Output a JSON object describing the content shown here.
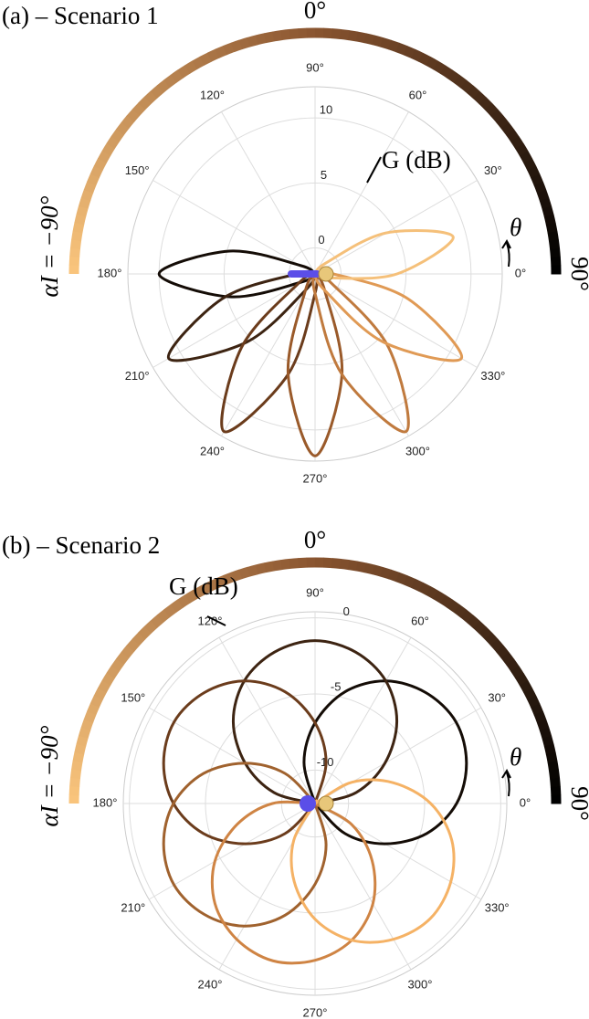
{
  "chart_data": [
    {
      "type": "polar",
      "title": "(a) – Scenario 1",
      "colorbar": {
        "colors": [
          "#f9c47c",
          "#8a5530",
          "#000000"
        ],
        "top_label": "0°",
        "right_label": "90°",
        "left_label": "αI = −90°"
      },
      "theta_label": "θ",
      "gain_label": "G (dB)",
      "rlim": [
        -2,
        12.4
      ],
      "rticks": [
        0,
        5,
        10
      ],
      "angle_ticks": [
        {
          "value": 0,
          "label": "0°"
        },
        {
          "value": 30,
          "label": "30°"
        },
        {
          "value": 60,
          "label": "60°"
        },
        {
          "value": 90,
          "label": "90°"
        },
        {
          "value": 120,
          "label": "120°"
        },
        {
          "value": 150,
          "label": "150°"
        },
        {
          "value": 180,
          "label": "180°"
        },
        {
          "value": 210,
          "label": "210°"
        },
        {
          "value": 240,
          "label": "240°"
        },
        {
          "value": 270,
          "label": "270°"
        },
        {
          "value": 300,
          "label": "300°"
        },
        {
          "value": 330,
          "label": "330°"
        }
      ],
      "theta": [
        0,
        15,
        30,
        45,
        60,
        75,
        90,
        105,
        120,
        135,
        150,
        165,
        180,
        195,
        210,
        225,
        240,
        255,
        270,
        285,
        300,
        315,
        330,
        345
      ],
      "series": [
        {
          "color": "#140c06",
          "values": [
            -2,
            -2,
            -2,
            -2,
            -2,
            -2,
            -2,
            -2,
            -2,
            -2,
            -0.7,
            4.8,
            10,
            4.8,
            -0.7,
            -2,
            -2,
            -2,
            -2,
            -2,
            -2,
            -2,
            -2,
            -2
          ]
        },
        {
          "color": "#3d2412",
          "values": [
            -2,
            -2,
            -2,
            -2,
            -2,
            -2,
            -2,
            -2,
            -2,
            -2,
            -2,
            -2,
            -0.6,
            5.4,
            11,
            5.4,
            -0.6,
            -2,
            -2,
            -2,
            -2,
            -2,
            -2,
            -2
          ]
        },
        {
          "color": "#6b3c1c",
          "values": [
            -2,
            -2,
            -2,
            -2,
            -2,
            -2,
            -2,
            -2,
            -2,
            -2,
            -2,
            -2,
            -2,
            -2,
            -0.5,
            6,
            12,
            6,
            -0.5,
            -2,
            -2,
            -2,
            -2,
            -2
          ]
        },
        {
          "color": "#9a5a2a",
          "values": [
            -2,
            -2,
            -2,
            -2,
            -2,
            -2,
            -2,
            -2,
            -2,
            -2,
            -2,
            -2,
            -2,
            -2,
            -2,
            -2,
            -0.5,
            6,
            12,
            6,
            -0.5,
            -2,
            -2,
            -2
          ]
        },
        {
          "color": "#c07a3e",
          "values": [
            -2,
            -2,
            -2,
            -2,
            -2,
            -2,
            -2,
            -2,
            -2,
            -2,
            -2,
            -2,
            -2,
            -2,
            -2,
            -2,
            -2,
            -2,
            -0.5,
            6,
            12,
            6,
            -0.5,
            -2
          ]
        },
        {
          "color": "#e09a55",
          "values": [
            -0.6,
            -2,
            -2,
            -2,
            -2,
            -2,
            -2,
            -2,
            -2,
            -2,
            -2,
            -2,
            -2,
            -2,
            -2,
            -2,
            -2,
            -2,
            -2,
            -2,
            -0.6,
            5.4,
            11,
            5.4
          ]
        },
        {
          "color": "#f5c07a",
          "values": [
            4.3,
            9,
            4.3,
            -0.8,
            -2,
            -2,
            -2,
            -2,
            -2,
            -2,
            -2,
            -2,
            -2,
            -2,
            -2,
            -2,
            -2,
            -2,
            -2,
            -2,
            -2,
            -2,
            -2,
            -0.8
          ]
        }
      ]
    },
    {
      "type": "polar",
      "title": "(b) – Scenario 2",
      "colorbar": {
        "colors": [
          "#f9c47c",
          "#8a5530",
          "#000000"
        ],
        "top_label": "0°",
        "right_label": "90°",
        "left_label": "αI = −90°"
      },
      "theta_label": "θ",
      "gain_label": "G (dB)",
      "rlim": [
        -12.2,
        0.4
      ],
      "rticks": [
        -10,
        -5,
        0
      ],
      "angle_ticks": [
        {
          "value": 0,
          "label": "0°"
        },
        {
          "value": 30,
          "label": "30°"
        },
        {
          "value": 60,
          "label": "60°"
        },
        {
          "value": 90,
          "label": "90°"
        },
        {
          "value": 120,
          "label": "120°"
        },
        {
          "value": 150,
          "label": "150°"
        },
        {
          "value": 180,
          "label": "180°"
        },
        {
          "value": 210,
          "label": "210°"
        },
        {
          "value": 240,
          "label": "240°"
        },
        {
          "value": 270,
          "label": "270°"
        },
        {
          "value": 300,
          "label": "300°"
        },
        {
          "value": 330,
          "label": "330°"
        }
      ],
      "theta": [
        0,
        15,
        30,
        45,
        60,
        75,
        90,
        105,
        120,
        135,
        150,
        165,
        180,
        195,
        210,
        225,
        240,
        255,
        270,
        285,
        300,
        315,
        330,
        345
      ],
      "series": [
        {
          "color": "#140c06",
          "values": [
            -2.9,
            -1.9,
            -1.5,
            -1.9,
            -2.9,
            -4.6,
            -6.9,
            -9.4,
            -12.2,
            -12.2,
            -12.2,
            -12.2,
            -12.2,
            -12.2,
            -12.2,
            -12.2,
            -12.2,
            -12.2,
            -12.2,
            -12.2,
            -12.2,
            -9.4,
            -6.9,
            -4.6
          ]
        },
        {
          "color": "#3d2412",
          "values": [
            -12.2,
            -9.4,
            -6.9,
            -4.6,
            -2.9,
            -1.9,
            -1.5,
            -1.9,
            -2.9,
            -4.6,
            -6.9,
            -9.4,
            -12.2,
            -12.2,
            -12.2,
            -12.2,
            -12.2,
            -12.2,
            -12.2,
            -12.2,
            -12.2,
            -12.2,
            -12.2,
            -12.2
          ]
        },
        {
          "color": "#6b3c1c",
          "values": [
            -12.2,
            -12.2,
            -12.2,
            -12.2,
            -12.2,
            -9.4,
            -6.9,
            -4.6,
            -2.9,
            -1.9,
            -1.5,
            -1.9,
            -2.9,
            -4.6,
            -6.9,
            -9.4,
            -12.2,
            -12.2,
            -12.2,
            -12.2,
            -12.2,
            -12.2,
            -12.2,
            -12.2
          ]
        },
        {
          "color": "#a0622e",
          "values": [
            -12.2,
            -12.2,
            -12.2,
            -12.2,
            -12.2,
            -12.2,
            -12.2,
            -12.2,
            -12.2,
            -9.4,
            -6.9,
            -4.6,
            -2.9,
            -1.9,
            -1.5,
            -1.9,
            -2.9,
            -4.6,
            -6.9,
            -9.4,
            -12.2,
            -12.2,
            -12.2,
            -12.2
          ]
        },
        {
          "color": "#cf8444",
          "values": [
            -12.2,
            -12.2,
            -12.2,
            -12.2,
            -12.2,
            -12.2,
            -12.2,
            -12.2,
            -12.2,
            -12.2,
            -12.2,
            -12.2,
            -9.4,
            -6.9,
            -4.6,
            -2.9,
            -1.9,
            -1.5,
            -1.9,
            -2.9,
            -4.6,
            -6.9,
            -9.4,
            -12.2
          ]
        },
        {
          "color": "#f5b265",
          "values": [
            -4.6,
            -6.9,
            -9.4,
            -12.2,
            -12.2,
            -12.2,
            -12.2,
            -12.2,
            -12.2,
            -12.2,
            -12.2,
            -12.2,
            -12.2,
            -12.2,
            -12.2,
            -12.2,
            -9.4,
            -6.9,
            -4.6,
            -2.9,
            -1.9,
            -1.5,
            -1.9,
            -2.9
          ]
        }
      ]
    }
  ]
}
